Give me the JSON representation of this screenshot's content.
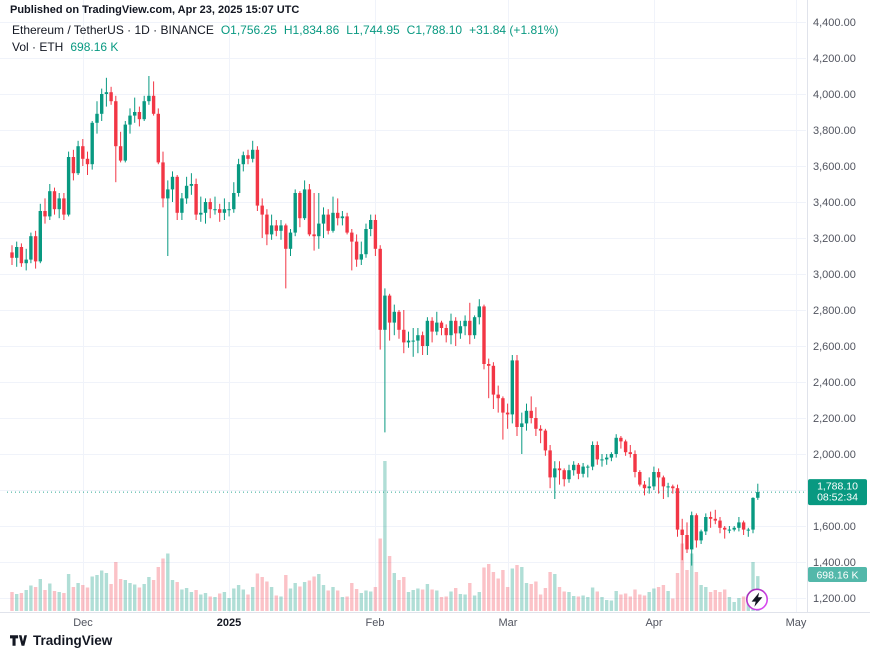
{
  "header": {
    "published": "Published on TradingView.com, Apr 23, 2025 15:07 UTC",
    "symbol_line": "Ethereum / TetherUS · 1D · BINANCE",
    "ohlc": {
      "open": "O1,756.25",
      "high": "H1,834.86",
      "low": "L1,744.95",
      "close": "C1,788.10",
      "change": "+31.84 (+1.81%)"
    },
    "vol_label": "Vol · ETH",
    "vol_value": "698.16 K"
  },
  "footer": {
    "brand": "TradingView"
  },
  "badges": {
    "price": {
      "value": "1,788.10",
      "countdown": "08:52:34",
      "color": "#089981"
    },
    "volume": {
      "value": "698.16 K",
      "color": "#53b8aa"
    }
  },
  "colors": {
    "up": "#089981",
    "down": "#f23645",
    "vol_up": "rgba(8,153,129,0.32)",
    "vol_down": "rgba(242,54,69,0.30)",
    "grid": "#f0f3fa",
    "separator": "#e0e3eb",
    "axis_text": "#51545f",
    "text_dark": "#131722",
    "flash_start": "#9c27b0",
    "flash_end": "#e24ffb"
  },
  "chart_data": {
    "type": "candlestick",
    "title": "Ethereum / TetherUS · 1D · BINANCE",
    "last_price": 1788.1,
    "countdown": "08:52:34",
    "last_volume_k": 698.16,
    "volume_max_k": 3000,
    "price_axis": {
      "min": 1200,
      "max": 4400,
      "step": 200,
      "ticks": [
        {
          "t": "4,400.00",
          "v": 4400
        },
        {
          "t": "4,200.00",
          "v": 4200
        },
        {
          "t": "4,000.00",
          "v": 4000
        },
        {
          "t": "3,800.00",
          "v": 3800
        },
        {
          "t": "3,600.00",
          "v": 3600
        },
        {
          "t": "3,400.00",
          "v": 3400
        },
        {
          "t": "3,200.00",
          "v": 3200
        },
        {
          "t": "3,000.00",
          "v": 3000
        },
        {
          "t": "2,800.00",
          "v": 2800
        },
        {
          "t": "2,600.00",
          "v": 2600
        },
        {
          "t": "2,400.00",
          "v": 2400
        },
        {
          "t": "2,200.00",
          "v": 2200
        },
        {
          "t": "2,000.00",
          "v": 2000
        },
        {
          "t": "1,800.00",
          "v": 1800
        },
        {
          "t": "1,600.00",
          "v": 1600
        },
        {
          "t": "1,400.00",
          "v": 1400
        },
        {
          "t": "1,200.00",
          "v": 1200
        }
      ]
    },
    "time_axis": {
      "ticks": [
        {
          "l": "Dec",
          "i": 15
        },
        {
          "l": "2025",
          "i": 46,
          "bold": true
        },
        {
          "l": "Feb",
          "i": 77
        },
        {
          "l": "Mar",
          "i": 105
        },
        {
          "l": "Apr",
          "i": 136
        },
        {
          "l": "May",
          "i": 166
        }
      ]
    },
    "candles_format": [
      "open",
      "high",
      "low",
      "close",
      "volume_k"
    ],
    "candles": [
      [
        3120,
        3160,
        3050,
        3090,
        380
      ],
      [
        3090,
        3180,
        3040,
        3150,
        340
      ],
      [
        3150,
        3170,
        3040,
        3060,
        360
      ],
      [
        3060,
        3140,
        3020,
        3080,
        420
      ],
      [
        3080,
        3230,
        3060,
        3210,
        510
      ],
      [
        3210,
        3240,
        3030,
        3070,
        480
      ],
      [
        3070,
        3390,
        3060,
        3350,
        640
      ],
      [
        3350,
        3420,
        3280,
        3320,
        420
      ],
      [
        3320,
        3500,
        3300,
        3460,
        550
      ],
      [
        3460,
        3480,
        3330,
        3360,
        400
      ],
      [
        3360,
        3450,
        3310,
        3420,
        380
      ],
      [
        3420,
        3450,
        3300,
        3330,
        360
      ],
      [
        3330,
        3680,
        3320,
        3650,
        740
      ],
      [
        3650,
        3690,
        3520,
        3560,
        480
      ],
      [
        3560,
        3740,
        3550,
        3710,
        560
      ],
      [
        3710,
        3750,
        3600,
        3640,
        520
      ],
      [
        3640,
        3680,
        3550,
        3610,
        470
      ],
      [
        3610,
        3850,
        3580,
        3840,
        690
      ],
      [
        3840,
        3960,
        3780,
        3890,
        720
      ],
      [
        3890,
        4030,
        3850,
        4000,
        810
      ],
      [
        4000,
        4090,
        3930,
        4010,
        760
      ],
      [
        4010,
        4040,
        3940,
        3960,
        540
      ],
      [
        3960,
        3990,
        3510,
        3710,
        980
      ],
      [
        3710,
        3790,
        3620,
        3630,
        640
      ],
      [
        3630,
        3850,
        3620,
        3830,
        620
      ],
      [
        3830,
        3920,
        3780,
        3880,
        560
      ],
      [
        3880,
        3980,
        3840,
        3900,
        530
      ],
      [
        3900,
        3930,
        3820,
        3860,
        470
      ],
      [
        3860,
        3990,
        3850,
        3960,
        540
      ],
      [
        3960,
        4100,
        3940,
        3990,
        680
      ],
      [
        3990,
        4070,
        3880,
        3890,
        620
      ],
      [
        3890,
        3920,
        3610,
        3620,
        880
      ],
      [
        3620,
        3680,
        3370,
        3420,
        1050
      ],
      [
        3420,
        3520,
        3100,
        3470,
        1150
      ],
      [
        3470,
        3570,
        3400,
        3540,
        620
      ],
      [
        3540,
        3550,
        3300,
        3340,
        580
      ],
      [
        3340,
        3450,
        3300,
        3420,
        430
      ],
      [
        3420,
        3540,
        3390,
        3490,
        460
      ],
      [
        3490,
        3560,
        3440,
        3500,
        380
      ],
      [
        3500,
        3530,
        3300,
        3330,
        420
      ],
      [
        3330,
        3430,
        3290,
        3340,
        330
      ],
      [
        3340,
        3420,
        3280,
        3400,
        360
      ],
      [
        3400,
        3420,
        3310,
        3360,
        290
      ],
      [
        3360,
        3430,
        3330,
        3360,
        280
      ],
      [
        3360,
        3390,
        3290,
        3340,
        350
      ],
      [
        3340,
        3420,
        3300,
        3360,
        380
      ],
      [
        3360,
        3400,
        3320,
        3360,
        260
      ],
      [
        3360,
        3510,
        3340,
        3450,
        450
      ],
      [
        3450,
        3640,
        3430,
        3610,
        520
      ],
      [
        3610,
        3680,
        3570,
        3660,
        430
      ],
      [
        3660,
        3690,
        3610,
        3640,
        330
      ],
      [
        3640,
        3740,
        3620,
        3690,
        480
      ],
      [
        3690,
        3710,
        3350,
        3380,
        750
      ],
      [
        3380,
        3420,
        3200,
        3330,
        680
      ],
      [
        3330,
        3360,
        3160,
        3220,
        590
      ],
      [
        3220,
        3330,
        3190,
        3270,
        480
      ],
      [
        3270,
        3300,
        3210,
        3240,
        310
      ],
      [
        3240,
        3300,
        3190,
        3270,
        290
      ],
      [
        3270,
        3280,
        2920,
        3140,
        720
      ],
      [
        3140,
        3250,
        3100,
        3230,
        450
      ],
      [
        3230,
        3470,
        3210,
        3450,
        560
      ],
      [
        3450,
        3460,
        3260,
        3310,
        490
      ],
      [
        3310,
        3520,
        3300,
        3470,
        580
      ],
      [
        3470,
        3500,
        3210,
        3220,
        610
      ],
      [
        3220,
        3450,
        3130,
        3210,
        690
      ],
      [
        3210,
        3450,
        3140,
        3280,
        740
      ],
      [
        3280,
        3370,
        3200,
        3330,
        520
      ],
      [
        3330,
        3360,
        3220,
        3240,
        410
      ],
      [
        3240,
        3430,
        3230,
        3340,
        480
      ],
      [
        3340,
        3420,
        3270,
        3310,
        410
      ],
      [
        3310,
        3350,
        3270,
        3320,
        280
      ],
      [
        3320,
        3340,
        3220,
        3230,
        290
      ],
      [
        3230,
        3250,
        3020,
        3180,
        560
      ],
      [
        3180,
        3220,
        3040,
        3080,
        440
      ],
      [
        3080,
        3180,
        3050,
        3110,
        360
      ],
      [
        3110,
        3280,
        3090,
        3250,
        410
      ],
      [
        3250,
        3330,
        3210,
        3300,
        390
      ],
      [
        3300,
        3330,
        3100,
        3140,
        480
      ],
      [
        3140,
        3160,
        2580,
        2690,
        1450
      ],
      [
        2690,
        2920,
        2120,
        2880,
        3000
      ],
      [
        2880,
        2890,
        2630,
        2730,
        1100
      ],
      [
        2730,
        2830,
        2660,
        2790,
        760
      ],
      [
        2790,
        2800,
        2640,
        2690,
        620
      ],
      [
        2690,
        2800,
        2560,
        2620,
        680
      ],
      [
        2620,
        2680,
        2590,
        2630,
        380
      ],
      [
        2630,
        2700,
        2540,
        2630,
        420
      ],
      [
        2630,
        2700,
        2560,
        2660,
        450
      ],
      [
        2660,
        2680,
        2550,
        2600,
        430
      ],
      [
        2600,
        2760,
        2550,
        2740,
        540
      ],
      [
        2740,
        2760,
        2620,
        2680,
        430
      ],
      [
        2680,
        2790,
        2660,
        2730,
        410
      ],
      [
        2730,
        2740,
        2660,
        2700,
        280
      ],
      [
        2700,
        2720,
        2620,
        2660,
        290
      ],
      [
        2660,
        2780,
        2610,
        2740,
        390
      ],
      [
        2740,
        2760,
        2600,
        2670,
        460
      ],
      [
        2670,
        2740,
        2640,
        2710,
        340
      ],
      [
        2710,
        2770,
        2660,
        2740,
        330
      ],
      [
        2740,
        2840,
        2610,
        2660,
        560
      ],
      [
        2660,
        2770,
        2640,
        2760,
        310
      ],
      [
        2760,
        2860,
        2720,
        2820,
        380
      ],
      [
        2820,
        2830,
        2470,
        2500,
        870
      ],
      [
        2500,
        2530,
        2310,
        2490,
        940
      ],
      [
        2490,
        2510,
        2250,
        2330,
        780
      ],
      [
        2330,
        2380,
        2230,
        2310,
        650
      ],
      [
        2310,
        2320,
        2080,
        2230,
        820
      ],
      [
        2230,
        2280,
        2140,
        2220,
        480
      ],
      [
        2220,
        2550,
        2170,
        2520,
        850
      ],
      [
        2520,
        2550,
        2100,
        2150,
        920
      ],
      [
        2150,
        2230,
        2000,
        2170,
        880
      ],
      [
        2170,
        2280,
        2130,
        2240,
        560
      ],
      [
        2240,
        2320,
        2170,
        2200,
        540
      ],
      [
        2200,
        2260,
        2100,
        2140,
        590
      ],
      [
        2140,
        2160,
        2060,
        2130,
        330
      ],
      [
        2130,
        2140,
        1990,
        2020,
        460
      ],
      [
        2020,
        2050,
        1810,
        1870,
        780
      ],
      [
        1870,
        1960,
        1750,
        1920,
        740
      ],
      [
        1920,
        1960,
        1830,
        1910,
        480
      ],
      [
        1910,
        1920,
        1820,
        1860,
        390
      ],
      [
        1860,
        1940,
        1840,
        1910,
        380
      ],
      [
        1910,
        1960,
        1880,
        1940,
        300
      ],
      [
        1940,
        1950,
        1860,
        1890,
        290
      ],
      [
        1890,
        1950,
        1870,
        1930,
        310
      ],
      [
        1930,
        1940,
        1870,
        1930,
        280
      ],
      [
        1930,
        2070,
        1910,
        2050,
        470
      ],
      [
        2050,
        2070,
        1940,
        1970,
        390
      ],
      [
        1970,
        2000,
        1930,
        1970,
        280
      ],
      [
        1970,
        2000,
        1940,
        1980,
        220
      ],
      [
        1980,
        2010,
        1960,
        2000,
        210
      ],
      [
        2000,
        2110,
        1980,
        2090,
        400
      ],
      [
        2090,
        2100,
        2030,
        2070,
        330
      ],
      [
        2070,
        2080,
        1990,
        2010,
        350
      ],
      [
        2010,
        2050,
        1980,
        2000,
        290
      ],
      [
        2000,
        2020,
        1870,
        1900,
        430
      ],
      [
        1900,
        1910,
        1820,
        1830,
        330
      ],
      [
        1830,
        1850,
        1770,
        1810,
        310
      ],
      [
        1810,
        1870,
        1780,
        1820,
        380
      ],
      [
        1820,
        1930,
        1800,
        1900,
        450
      ],
      [
        1900,
        1920,
        1780,
        1870,
        480
      ],
      [
        1870,
        1880,
        1750,
        1820,
        520
      ],
      [
        1820,
        1840,
        1760,
        1820,
        400
      ],
      [
        1820,
        1830,
        1780,
        1810,
        250
      ],
      [
        1810,
        1830,
        1540,
        1580,
        760
      ],
      [
        1580,
        1640,
        1410,
        1550,
        1350
      ],
      [
        1550,
        1620,
        1450,
        1470,
        820
      ],
      [
        1470,
        1680,
        1380,
        1660,
        1150
      ],
      [
        1660,
        1670,
        1480,
        1520,
        780
      ],
      [
        1520,
        1580,
        1500,
        1570,
        520
      ],
      [
        1570,
        1670,
        1550,
        1650,
        480
      ],
      [
        1650,
        1680,
        1590,
        1640,
        380
      ],
      [
        1640,
        1690,
        1610,
        1630,
        420
      ],
      [
        1630,
        1650,
        1560,
        1590,
        380
      ],
      [
        1590,
        1600,
        1530,
        1580,
        430
      ],
      [
        1580,
        1600,
        1560,
        1580,
        280
      ],
      [
        1580,
        1600,
        1570,
        1590,
        180
      ],
      [
        1590,
        1650,
        1570,
        1620,
        260
      ],
      [
        1620,
        1630,
        1550,
        1580,
        290
      ],
      [
        1580,
        1590,
        1540,
        1580,
        330
      ],
      [
        1580,
        1760,
        1560,
        1756,
        980
      ],
      [
        1756.25,
        1834.86,
        1744.95,
        1788.1,
        698.16
      ]
    ]
  }
}
